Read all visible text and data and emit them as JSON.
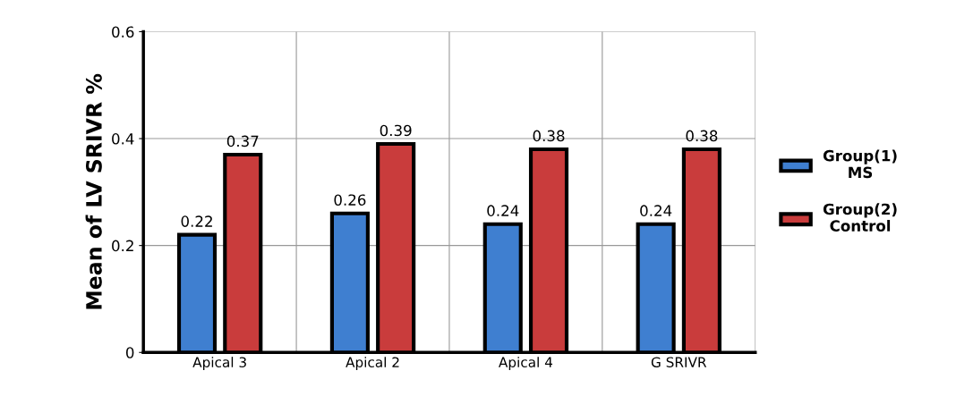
{
  "chart_data": {
    "type": "bar",
    "ylabel": "Mean of LV SRIVR %",
    "categories": [
      "Apical 3",
      "Apical 2",
      "Apical 4",
      "G SRIVR"
    ],
    "series": [
      {
        "name": "Group(1)\nMS",
        "color": "#3f7fd0",
        "values": [
          0.22,
          0.26,
          0.24,
          0.24
        ]
      },
      {
        "name": "Group(2)\nControl",
        "color": "#c93c3c",
        "values": [
          0.37,
          0.39,
          0.38,
          0.38
        ]
      }
    ],
    "ylim": [
      0,
      0.6
    ],
    "yticks": [
      0,
      0.2,
      0.4,
      0.6
    ],
    "grid": true,
    "legend": "right",
    "data_labels": true
  }
}
